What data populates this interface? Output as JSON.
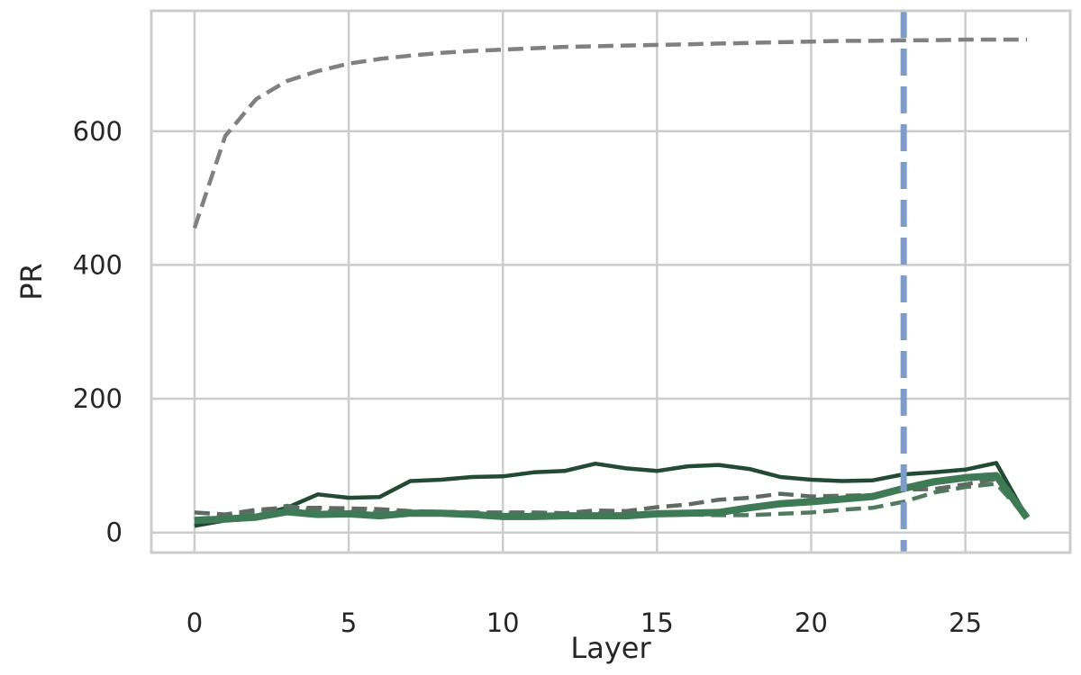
{
  "chart_data": {
    "type": "line",
    "title": "",
    "xlabel": "Layer",
    "ylabel": "PR",
    "xlim": [
      -1.4,
      28.4
    ],
    "ylim": [
      -30,
      780
    ],
    "xticks": [
      0,
      5,
      10,
      15,
      20,
      25
    ],
    "yticks": [
      0,
      200,
      400,
      600
    ],
    "grid": true,
    "legend": "none",
    "colors": {
      "grid": "#cccccc",
      "axes": "#cccccc",
      "gray_dashed": "#808080",
      "dark_green": "#234a33",
      "mid_green": "#4f7a5e",
      "gray_green": "#5e6b62",
      "green_thick": "#3e7a56",
      "vline": "#7f9cc9"
    },
    "series": [
      {
        "style": "gray_dashed",
        "x": [
          0,
          1,
          2,
          3,
          4,
          5,
          6,
          7,
          8,
          9,
          10,
          11,
          12,
          13,
          14,
          15,
          16,
          17,
          18,
          19,
          20,
          21,
          22,
          23,
          24,
          25,
          26,
          27
        ],
        "values": [
          455,
          593,
          648,
          675,
          690,
          701,
          708,
          713,
          717,
          720,
          722,
          724,
          726,
          727,
          728,
          729,
          730,
          731,
          732,
          733,
          734,
          735,
          735,
          736,
          736,
          737,
          737,
          737
        ]
      },
      {
        "style": "dark_green",
        "x": [
          0,
          1,
          2,
          3,
          4,
          5,
          6,
          7,
          8,
          9,
          10,
          11,
          12,
          13,
          14,
          15,
          16,
          17,
          18,
          19,
          20,
          21,
          22,
          23,
          24,
          25,
          26,
          27
        ],
        "values": [
          10,
          18,
          25,
          37,
          57,
          52,
          53,
          77,
          79,
          83,
          84,
          90,
          92,
          103,
          96,
          92,
          99,
          101,
          95,
          83,
          79,
          77,
          78,
          87,
          90,
          94,
          104,
          22
        ]
      },
      {
        "style": "mid_green",
        "x": [
          0,
          1,
          2,
          3,
          4,
          5,
          6,
          7,
          8,
          9,
          10,
          11,
          12,
          13,
          14,
          15,
          16,
          17,
          18,
          19,
          20,
          21,
          22,
          23,
          24,
          25,
          26,
          27
        ],
        "values": [
          20,
          24,
          30,
          40,
          32,
          31,
          30,
          30,
          29,
          28,
          27,
          27,
          26,
          29,
          27,
          27,
          27,
          26,
          26,
          28,
          30,
          34,
          37,
          46,
          60,
          68,
          73,
          22
        ]
      },
      {
        "style": "gray_green",
        "x": [
          0,
          1,
          2,
          3,
          4,
          5,
          6,
          7,
          8,
          9,
          10,
          11,
          12,
          13,
          14,
          15,
          16,
          17,
          18,
          19,
          20,
          21,
          22,
          23,
          24,
          25,
          26,
          27
        ],
        "values": [
          30,
          27,
          34,
          37,
          37,
          36,
          35,
          32,
          31,
          30,
          30,
          30,
          29,
          33,
          32,
          38,
          42,
          49,
          52,
          58,
          54,
          55,
          56,
          64,
          65,
          72,
          80,
          22
        ]
      },
      {
        "style": "green_thick",
        "x": [
          0,
          1,
          2,
          3,
          4,
          5,
          6,
          7,
          8,
          9,
          10,
          11,
          12,
          13,
          14,
          15,
          16,
          17,
          18,
          19,
          20,
          21,
          22,
          23,
          24,
          25,
          26,
          27
        ],
        "values": [
          18,
          20,
          23,
          31,
          27,
          28,
          25,
          29,
          29,
          27,
          24,
          24,
          25,
          25,
          25,
          28,
          29,
          30,
          37,
          43,
          46,
          50,
          54,
          66,
          76,
          82,
          85,
          22
        ]
      }
    ],
    "vlines": [
      {
        "x": 23,
        "style": "vline"
      }
    ]
  }
}
